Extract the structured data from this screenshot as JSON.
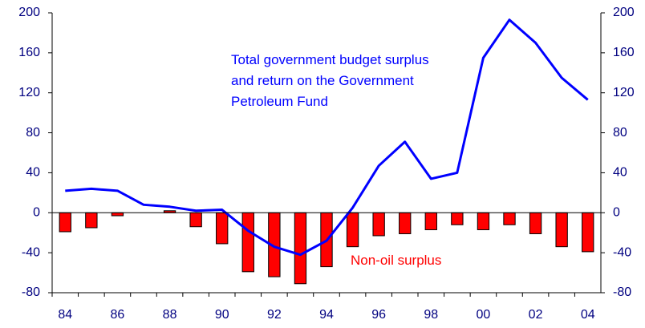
{
  "chart_data": {
    "type": "bar-line",
    "categories": [
      "84",
      null,
      "86",
      null,
      "88",
      null,
      "90",
      null,
      "92",
      null,
      "94",
      null,
      "96",
      null,
      "98",
      null,
      "00",
      null,
      "02",
      null,
      "04"
    ],
    "series": [
      {
        "name": "Non-oil surplus",
        "type": "bar",
        "color": "#ff0000",
        "values": [
          -19,
          -15,
          -3,
          0,
          2,
          -14,
          -31,
          -59,
          -64,
          -71,
          -54,
          -34,
          -23,
          -21,
          -17,
          -12,
          -17,
          -12,
          -21,
          -34,
          -39
        ]
      },
      {
        "name": "Total government budget surplus and return on the Government Petroleum Fund",
        "type": "line",
        "color": "#0000ff",
        "values": [
          22,
          24,
          22,
          8,
          6,
          2,
          3,
          -18,
          -34,
          -42,
          -28,
          5,
          47,
          71,
          34,
          40,
          155,
          193,
          170,
          135,
          113
        ]
      }
    ],
    "ylim": [
      -80,
      200
    ],
    "yticks": [
      -80,
      -40,
      0,
      40,
      80,
      120,
      160,
      200
    ],
    "y2lim": [
      -80,
      200
    ],
    "y2ticks": [
      -80,
      -40,
      0,
      40,
      80,
      120,
      160,
      200
    ]
  }
}
